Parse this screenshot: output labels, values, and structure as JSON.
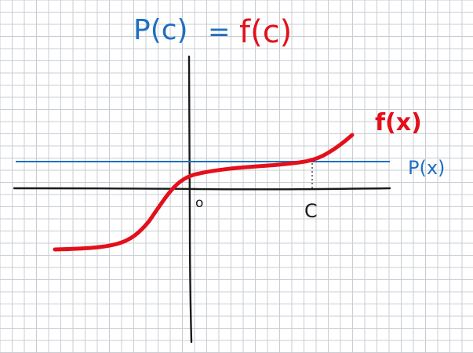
{
  "title": {
    "left": "P(c)",
    "equals": "=",
    "right": "f(c)"
  },
  "labels": {
    "f_curve": "f(x)",
    "p_line": "P(x)",
    "origin": "o",
    "c_point": "C"
  },
  "colors": {
    "grid": "#c9cdd3",
    "f_curve": "#e3101b",
    "p_line": "#1f6fc1",
    "axis": "#1a1a1a",
    "p_text": "#1f6fc1",
    "f_text": "#e3101b"
  }
}
